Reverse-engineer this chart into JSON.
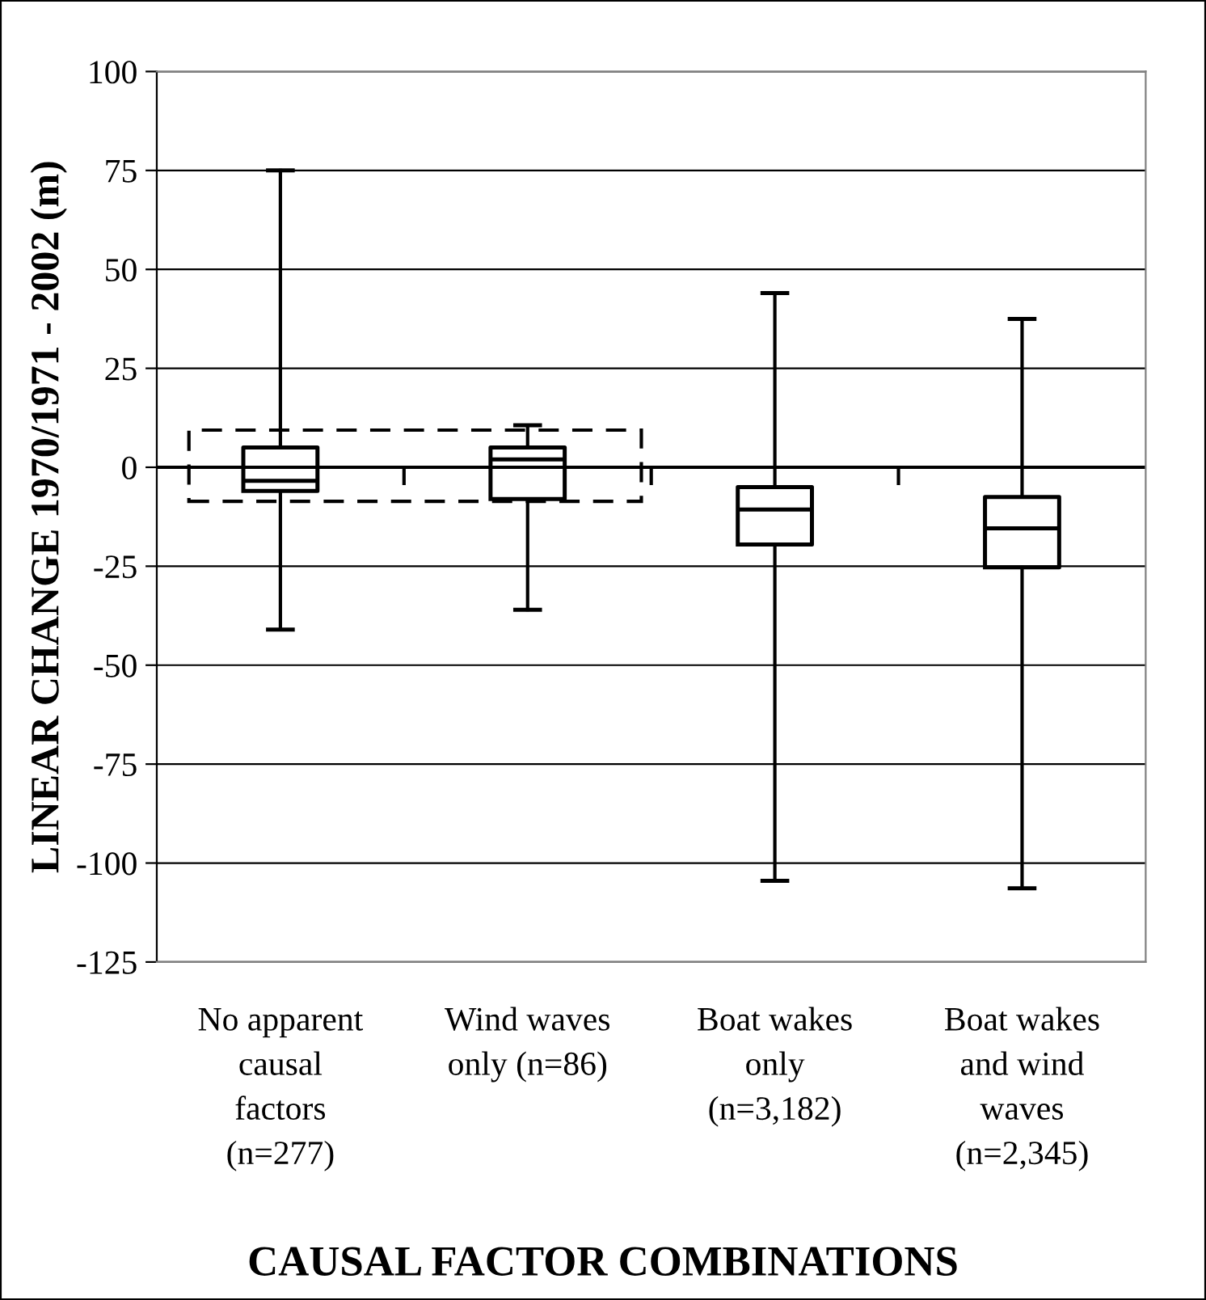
{
  "chart_data": {
    "type": "box",
    "xlabel": "CAUSAL FACTOR COMBINATIONS",
    "ylabel": "LINEAR CHANGE 1970/1971 - 2002 (m)",
    "categories": [
      "No apparent\ncausal\nfactors\n(n=277)",
      "Wind waves\nonly (n=86)",
      "Boat wakes\nonly\n(n=3,182)",
      "Boat wakes\nand wind\nwaves\n(n=2,345)"
    ],
    "boxes": [
      {
        "low": -41,
        "q1": -6,
        "median": -3.4,
        "q3": 5,
        "high": 75
      },
      {
        "low": -36,
        "q1": -8,
        "median": 2,
        "q3": 5,
        "high": 10.6
      },
      {
        "low": -104.5,
        "q1": -19.5,
        "median": -10.7,
        "q3": -5,
        "high": 44
      },
      {
        "low": -106.4,
        "q1": -25.3,
        "median": -15.4,
        "q3": -7.5,
        "high": 37.5
      }
    ],
    "color": "#000000",
    "ylim": [
      -125,
      100
    ],
    "yticks": [
      -125,
      -100,
      -75,
      -50,
      -25,
      0,
      25,
      50,
      75,
      100
    ],
    "grid": "y",
    "legend": false
  }
}
